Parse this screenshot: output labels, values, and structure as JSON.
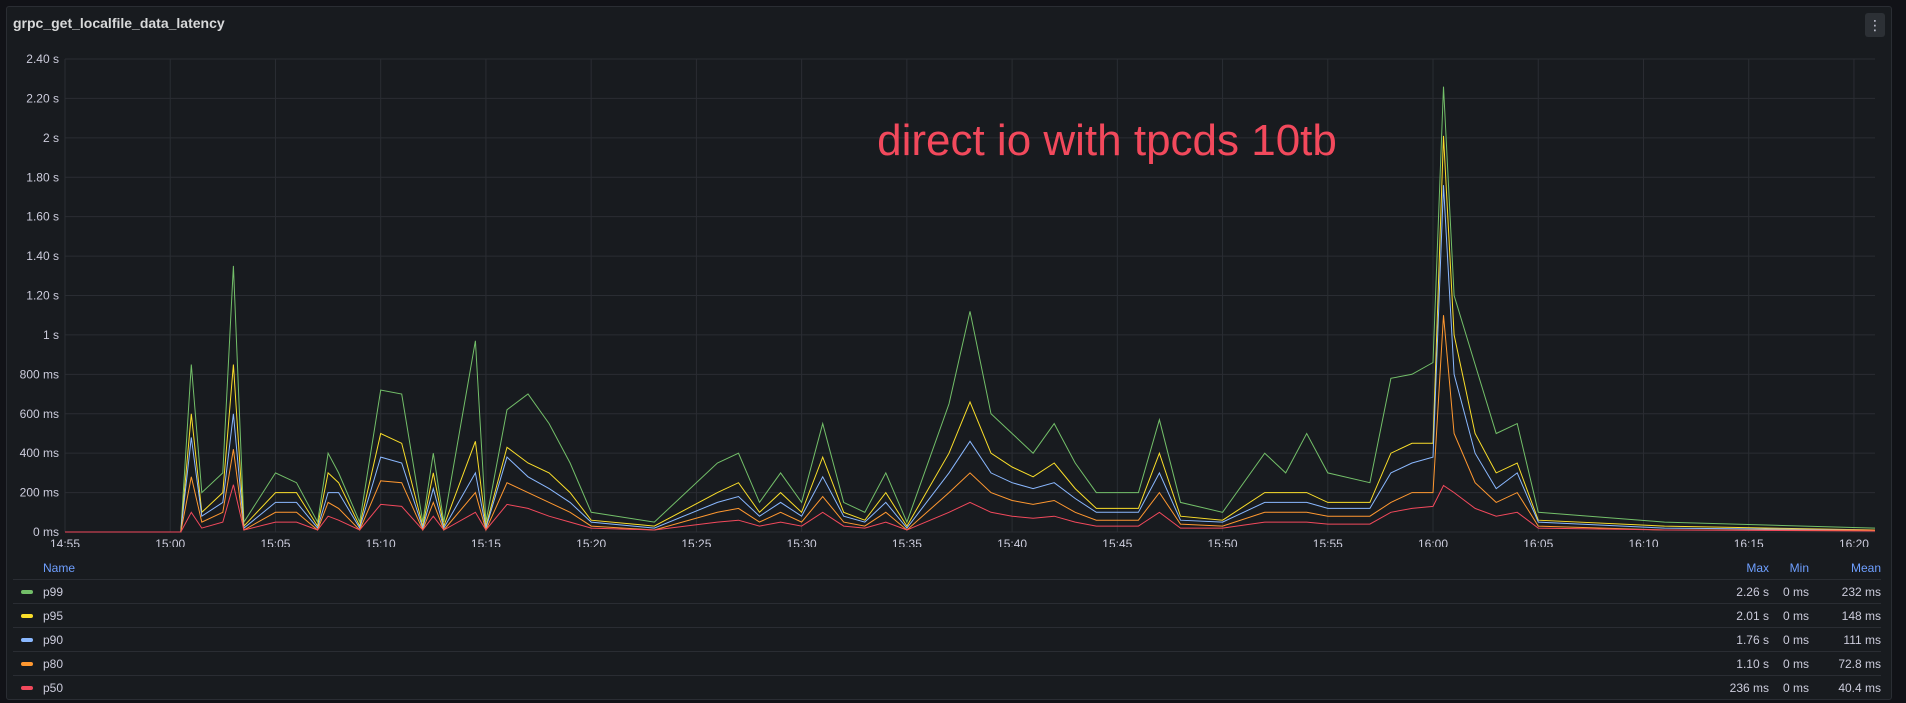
{
  "panel": {
    "title": "grpc_get_localfile_data_latency",
    "menu_icon": "⋮"
  },
  "annotation": {
    "text": "direct io with tpcds 10tb",
    "color": "#f2495c"
  },
  "legend": {
    "headers": {
      "name": "Name",
      "max": "Max",
      "min": "Min",
      "mean": "Mean"
    },
    "rows": [
      {
        "name": "p99",
        "color": "#73bf69",
        "max": "2.26 s",
        "min": "0 ms",
        "mean": "232 ms"
      },
      {
        "name": "p95",
        "color": "#fade2a",
        "max": "2.01 s",
        "min": "0 ms",
        "mean": "148 ms"
      },
      {
        "name": "p90",
        "color": "#8ab8ff",
        "max": "1.76 s",
        "min": "0 ms",
        "mean": "111 ms"
      },
      {
        "name": "p80",
        "color": "#ff9830",
        "max": "1.10 s",
        "min": "0 ms",
        "mean": "72.8 ms"
      },
      {
        "name": "p50",
        "color": "#f2495c",
        "max": "236 ms",
        "min": "0 ms",
        "mean": "40.4 ms"
      }
    ]
  },
  "chart_data": {
    "type": "line",
    "title": "grpc_get_localfile_data_latency",
    "xlabel": "",
    "ylabel": "",
    "x_ticks": [
      "14:55",
      "15:00",
      "15:05",
      "15:10",
      "15:15",
      "15:20",
      "15:25",
      "15:30",
      "15:35",
      "15:40",
      "15:45",
      "15:50",
      "15:55",
      "16:00",
      "16:05",
      "16:10",
      "16:15",
      "16:20"
    ],
    "y_ticks": [
      "0 ms",
      "200 ms",
      "400 ms",
      "600 ms",
      "800 ms",
      "1 s",
      "1.20 s",
      "1.40 s",
      "1.60 s",
      "1.80 s",
      "2 s",
      "2.20 s",
      "2.40 s"
    ],
    "ylim": [
      0,
      2.4
    ],
    "y_unit": "s",
    "xlim_minutes_from_1455": [
      0,
      86
    ],
    "grid": true,
    "legend_position": "bottom",
    "p99_points": [
      [
        0,
        0
      ],
      [
        5.5,
        0
      ],
      [
        6,
        0.85
      ],
      [
        6.5,
        0.2
      ],
      [
        7.5,
        0.3
      ],
      [
        8,
        1.35
      ],
      [
        8.5,
        0.05
      ],
      [
        10,
        0.3
      ],
      [
        11,
        0.25
      ],
      [
        12,
        0.05
      ],
      [
        12.5,
        0.4
      ],
      [
        13,
        0.3
      ],
      [
        14,
        0.05
      ],
      [
        15,
        0.72
      ],
      [
        16,
        0.7
      ],
      [
        17,
        0.05
      ],
      [
        17.5,
        0.4
      ],
      [
        18,
        0.05
      ],
      [
        19.5,
        0.97
      ],
      [
        20,
        0.05
      ],
      [
        21,
        0.62
      ],
      [
        22,
        0.7
      ],
      [
        23,
        0.55
      ],
      [
        24,
        0.35
      ],
      [
        25,
        0.1
      ],
      [
        28,
        0.05
      ],
      [
        31,
        0.35
      ],
      [
        32,
        0.4
      ],
      [
        33,
        0.15
      ],
      [
        34,
        0.3
      ],
      [
        35,
        0.15
      ],
      [
        36,
        0.55
      ],
      [
        37,
        0.15
      ],
      [
        38,
        0.1
      ],
      [
        39,
        0.3
      ],
      [
        40,
        0.05
      ],
      [
        42,
        0.65
      ],
      [
        43,
        1.12
      ],
      [
        44,
        0.6
      ],
      [
        45,
        0.5
      ],
      [
        46,
        0.4
      ],
      [
        47,
        0.55
      ],
      [
        48,
        0.35
      ],
      [
        49,
        0.2
      ],
      [
        51,
        0.2
      ],
      [
        52,
        0.57
      ],
      [
        53,
        0.15
      ],
      [
        55,
        0.1
      ],
      [
        57,
        0.4
      ],
      [
        58,
        0.3
      ],
      [
        59,
        0.5
      ],
      [
        60,
        0.3
      ],
      [
        62,
        0.25
      ],
      [
        63,
        0.78
      ],
      [
        64,
        0.8
      ],
      [
        65,
        0.86
      ],
      [
        65.5,
        2.26
      ],
      [
        66,
        1.2
      ],
      [
        67,
        0.85
      ],
      [
        68,
        0.5
      ],
      [
        69,
        0.55
      ],
      [
        70,
        0.1
      ],
      [
        76,
        0.05
      ],
      [
        86,
        0.02
      ]
    ],
    "p95_points": [
      [
        0,
        0
      ],
      [
        5.5,
        0
      ],
      [
        6,
        0.6
      ],
      [
        6.5,
        0.1
      ],
      [
        7.5,
        0.2
      ],
      [
        8,
        0.85
      ],
      [
        8.5,
        0.03
      ],
      [
        10,
        0.2
      ],
      [
        11,
        0.2
      ],
      [
        12,
        0.03
      ],
      [
        12.5,
        0.3
      ],
      [
        13,
        0.25
      ],
      [
        14,
        0.03
      ],
      [
        15,
        0.5
      ],
      [
        16,
        0.45
      ],
      [
        17,
        0.03
      ],
      [
        17.5,
        0.3
      ],
      [
        18,
        0.03
      ],
      [
        19.5,
        0.46
      ],
      [
        20,
        0.03
      ],
      [
        21,
        0.43
      ],
      [
        22,
        0.35
      ],
      [
        23,
        0.3
      ],
      [
        24,
        0.2
      ],
      [
        25,
        0.06
      ],
      [
        28,
        0.03
      ],
      [
        31,
        0.2
      ],
      [
        32,
        0.25
      ],
      [
        33,
        0.1
      ],
      [
        34,
        0.2
      ],
      [
        35,
        0.1
      ],
      [
        36,
        0.38
      ],
      [
        37,
        0.1
      ],
      [
        38,
        0.06
      ],
      [
        39,
        0.2
      ],
      [
        40,
        0.03
      ],
      [
        42,
        0.4
      ],
      [
        43,
        0.66
      ],
      [
        44,
        0.4
      ],
      [
        45,
        0.33
      ],
      [
        46,
        0.28
      ],
      [
        47,
        0.35
      ],
      [
        48,
        0.22
      ],
      [
        49,
        0.12
      ],
      [
        51,
        0.12
      ],
      [
        52,
        0.4
      ],
      [
        53,
        0.08
      ],
      [
        55,
        0.06
      ],
      [
        57,
        0.2
      ],
      [
        58,
        0.2
      ],
      [
        59,
        0.2
      ],
      [
        60,
        0.15
      ],
      [
        62,
        0.15
      ],
      [
        63,
        0.4
      ],
      [
        64,
        0.45
      ],
      [
        65,
        0.45
      ],
      [
        65.5,
        2.01
      ],
      [
        66,
        1.0
      ],
      [
        67,
        0.5
      ],
      [
        68,
        0.3
      ],
      [
        69,
        0.35
      ],
      [
        70,
        0.06
      ],
      [
        76,
        0.03
      ],
      [
        86,
        0.01
      ]
    ],
    "p90_points": [
      [
        0,
        0
      ],
      [
        5.5,
        0
      ],
      [
        6,
        0.48
      ],
      [
        6.5,
        0.08
      ],
      [
        7.5,
        0.15
      ],
      [
        8,
        0.6
      ],
      [
        8.5,
        0.02
      ],
      [
        10,
        0.15
      ],
      [
        11,
        0.15
      ],
      [
        12,
        0.02
      ],
      [
        12.5,
        0.2
      ],
      [
        13,
        0.2
      ],
      [
        14,
        0.02
      ],
      [
        15,
        0.38
      ],
      [
        16,
        0.35
      ],
      [
        17,
        0.02
      ],
      [
        17.5,
        0.22
      ],
      [
        18,
        0.02
      ],
      [
        19.5,
        0.3
      ],
      [
        20,
        0.02
      ],
      [
        21,
        0.38
      ],
      [
        22,
        0.28
      ],
      [
        23,
        0.22
      ],
      [
        24,
        0.15
      ],
      [
        25,
        0.05
      ],
      [
        28,
        0.02
      ],
      [
        31,
        0.15
      ],
      [
        32,
        0.18
      ],
      [
        33,
        0.08
      ],
      [
        34,
        0.15
      ],
      [
        35,
        0.08
      ],
      [
        36,
        0.28
      ],
      [
        37,
        0.08
      ],
      [
        38,
        0.05
      ],
      [
        39,
        0.15
      ],
      [
        40,
        0.02
      ],
      [
        42,
        0.3
      ],
      [
        43,
        0.46
      ],
      [
        44,
        0.3
      ],
      [
        45,
        0.25
      ],
      [
        46,
        0.22
      ],
      [
        47,
        0.25
      ],
      [
        48,
        0.17
      ],
      [
        49,
        0.1
      ],
      [
        51,
        0.1
      ],
      [
        52,
        0.3
      ],
      [
        53,
        0.06
      ],
      [
        55,
        0.05
      ],
      [
        57,
        0.15
      ],
      [
        58,
        0.15
      ],
      [
        59,
        0.15
      ],
      [
        60,
        0.12
      ],
      [
        62,
        0.12
      ],
      [
        63,
        0.3
      ],
      [
        64,
        0.35
      ],
      [
        65,
        0.38
      ],
      [
        65.5,
        1.76
      ],
      [
        66,
        0.8
      ],
      [
        67,
        0.4
      ],
      [
        68,
        0.22
      ],
      [
        69,
        0.3
      ],
      [
        70,
        0.05
      ],
      [
        76,
        0.02
      ],
      [
        86,
        0.01
      ]
    ],
    "p80_points": [
      [
        0,
        0
      ],
      [
        5.5,
        0
      ],
      [
        6,
        0.28
      ],
      [
        6.5,
        0.05
      ],
      [
        7.5,
        0.1
      ],
      [
        8,
        0.42
      ],
      [
        8.5,
        0.01
      ],
      [
        10,
        0.1
      ],
      [
        11,
        0.1
      ],
      [
        12,
        0.01
      ],
      [
        12.5,
        0.15
      ],
      [
        13,
        0.12
      ],
      [
        14,
        0.01
      ],
      [
        15,
        0.26
      ],
      [
        16,
        0.25
      ],
      [
        17,
        0.01
      ],
      [
        17.5,
        0.15
      ],
      [
        18,
        0.01
      ],
      [
        19.5,
        0.2
      ],
      [
        20,
        0.01
      ],
      [
        21,
        0.25
      ],
      [
        22,
        0.2
      ],
      [
        23,
        0.15
      ],
      [
        24,
        0.1
      ],
      [
        25,
        0.03
      ],
      [
        28,
        0.01
      ],
      [
        31,
        0.1
      ],
      [
        32,
        0.12
      ],
      [
        33,
        0.05
      ],
      [
        34,
        0.1
      ],
      [
        35,
        0.05
      ],
      [
        36,
        0.18
      ],
      [
        37,
        0.05
      ],
      [
        38,
        0.03
      ],
      [
        39,
        0.1
      ],
      [
        40,
        0.01
      ],
      [
        42,
        0.2
      ],
      [
        43,
        0.3
      ],
      [
        44,
        0.2
      ],
      [
        45,
        0.16
      ],
      [
        46,
        0.14
      ],
      [
        47,
        0.16
      ],
      [
        48,
        0.1
      ],
      [
        49,
        0.06
      ],
      [
        51,
        0.06
      ],
      [
        52,
        0.2
      ],
      [
        53,
        0.04
      ],
      [
        55,
        0.03
      ],
      [
        57,
        0.1
      ],
      [
        58,
        0.1
      ],
      [
        59,
        0.1
      ],
      [
        60,
        0.08
      ],
      [
        62,
        0.08
      ],
      [
        63,
        0.15
      ],
      [
        64,
        0.2
      ],
      [
        65,
        0.2
      ],
      [
        65.5,
        1.1
      ],
      [
        66,
        0.5
      ],
      [
        67,
        0.25
      ],
      [
        68,
        0.15
      ],
      [
        69,
        0.2
      ],
      [
        70,
        0.03
      ],
      [
        76,
        0.01
      ],
      [
        86,
        0.01
      ]
    ],
    "p50_points": [
      [
        0,
        0
      ],
      [
        5.5,
        0
      ],
      [
        6,
        0.1
      ],
      [
        6.5,
        0.02
      ],
      [
        7.5,
        0.05
      ],
      [
        8,
        0.24
      ],
      [
        8.5,
        0.01
      ],
      [
        10,
        0.05
      ],
      [
        11,
        0.05
      ],
      [
        12,
        0.01
      ],
      [
        12.5,
        0.08
      ],
      [
        13,
        0.06
      ],
      [
        14,
        0.01
      ],
      [
        15,
        0.14
      ],
      [
        16,
        0.13
      ],
      [
        17,
        0.01
      ],
      [
        17.5,
        0.08
      ],
      [
        18,
        0.01
      ],
      [
        19.5,
        0.1
      ],
      [
        20,
        0.01
      ],
      [
        21,
        0.14
      ],
      [
        22,
        0.12
      ],
      [
        23,
        0.08
      ],
      [
        24,
        0.05
      ],
      [
        25,
        0.02
      ],
      [
        28,
        0.01
      ],
      [
        31,
        0.05
      ],
      [
        32,
        0.06
      ],
      [
        33,
        0.03
      ],
      [
        34,
        0.05
      ],
      [
        35,
        0.03
      ],
      [
        36,
        0.1
      ],
      [
        37,
        0.03
      ],
      [
        38,
        0.02
      ],
      [
        39,
        0.05
      ],
      [
        40,
        0.01
      ],
      [
        42,
        0.1
      ],
      [
        43,
        0.15
      ],
      [
        44,
        0.1
      ],
      [
        45,
        0.08
      ],
      [
        46,
        0.07
      ],
      [
        47,
        0.08
      ],
      [
        48,
        0.05
      ],
      [
        49,
        0.03
      ],
      [
        51,
        0.03
      ],
      [
        52,
        0.1
      ],
      [
        53,
        0.02
      ],
      [
        55,
        0.02
      ],
      [
        57,
        0.05
      ],
      [
        58,
        0.05
      ],
      [
        59,
        0.05
      ],
      [
        60,
        0.04
      ],
      [
        62,
        0.04
      ],
      [
        63,
        0.1
      ],
      [
        64,
        0.12
      ],
      [
        65,
        0.13
      ],
      [
        65.5,
        0.236
      ],
      [
        66,
        0.2
      ],
      [
        67,
        0.12
      ],
      [
        68,
        0.08
      ],
      [
        69,
        0.1
      ],
      [
        70,
        0.02
      ],
      [
        76,
        0.01
      ],
      [
        86,
        0.005
      ]
    ]
  }
}
